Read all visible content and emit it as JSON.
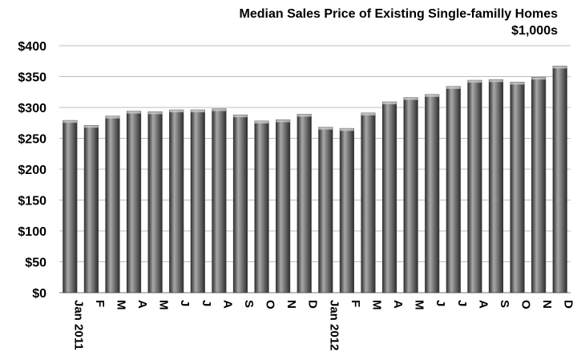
{
  "chart_data": {
    "type": "bar",
    "title": "Median Sales Price of Existing Single-familly Homes",
    "subtitle": "$1,000s",
    "categories": [
      "Jan 2011",
      "F",
      "M",
      "A",
      "M",
      "J",
      "J",
      "A",
      "S",
      "O",
      "N",
      "D",
      "Jan 2012",
      "F",
      "M",
      "A",
      "M",
      "J",
      "J",
      "A",
      "S",
      "O",
      "N",
      "D"
    ],
    "values": [
      279,
      271,
      286,
      294,
      293,
      296,
      296,
      298,
      288,
      278,
      280,
      289,
      268,
      266,
      291,
      309,
      316,
      321,
      334,
      344,
      345,
      341,
      349,
      367
    ],
    "ylim": [
      0,
      400
    ],
    "yticks": [
      0,
      50,
      100,
      150,
      200,
      250,
      300,
      350,
      400
    ],
    "ytick_labels": [
      "$0",
      "$50",
      "$100",
      "$150",
      "$200",
      "$250",
      "$300",
      "$350",
      "$400"
    ],
    "grid": true,
    "bar_color": "#6e6e6e",
    "bar_highlight": "#a8a8a8",
    "bar_shadow": "#2e2e2e",
    "grid_color": "#bdbdbd"
  }
}
